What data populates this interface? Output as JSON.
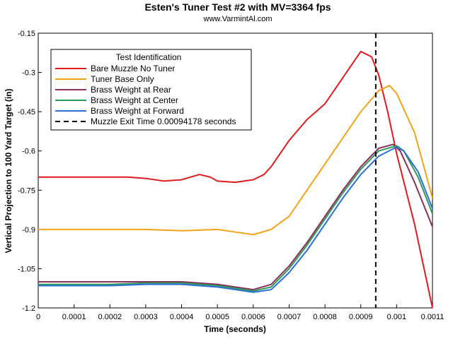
{
  "chart_data": {
    "type": "line",
    "title": "Esten's Tuner Test #2 with MV=3364 fps",
    "subtitle": "www.VarmintAl.com",
    "xlabel": "Time (seconds)",
    "ylabel": "Vertical Projection to 100 Yard Target (in)",
    "xlim": [
      0,
      0.0011
    ],
    "ylim": [
      -1.2,
      -0.15
    ],
    "x_ticks": [
      "0",
      "0.0001",
      "0.0002",
      "0.0003",
      "0.0004",
      "0.0005",
      "0.0006",
      "0.0007",
      "0.0008",
      "0.0009",
      "0.001",
      "0.0011"
    ],
    "y_ticks": [
      "-0.15",
      "-0.3",
      "-0.45",
      "-0.6",
      "-0.75",
      "-0.9",
      "-1.05",
      "-1.2"
    ],
    "grid": false,
    "legend": {
      "title": "Test Identification",
      "position": "top-left"
    },
    "series": [
      {
        "name": "Bare Muzzle No Tuner",
        "color": "#e31a1c",
        "x": [
          0,
          0.0001,
          0.0002,
          0.00025,
          0.0003,
          0.00035,
          0.0004,
          0.00045,
          0.00048,
          0.0005,
          0.00055,
          0.0006,
          0.00063,
          0.00065,
          0.0007,
          0.00075,
          0.0008,
          0.00085,
          0.0009,
          0.00093,
          0.00095,
          0.000975,
          0.001,
          0.00105,
          0.0011
        ],
        "values": [
          -0.7,
          -0.7,
          -0.7,
          -0.7,
          -0.705,
          -0.715,
          -0.71,
          -0.69,
          -0.7,
          -0.715,
          -0.72,
          -0.71,
          -0.69,
          -0.66,
          -0.56,
          -0.48,
          -0.42,
          -0.32,
          -0.22,
          -0.24,
          -0.31,
          -0.45,
          -0.61,
          -0.88,
          -1.2
        ]
      },
      {
        "name": "Tuner Base Only",
        "color": "#f5a21b",
        "x": [
          0,
          0.0001,
          0.0002,
          0.0003,
          0.0004,
          0.0005,
          0.00055,
          0.0006,
          0.00065,
          0.0007,
          0.00075,
          0.0008,
          0.00085,
          0.0009,
          0.00095,
          0.00098,
          0.001,
          0.00105,
          0.0011
        ],
        "values": [
          -0.9,
          -0.9,
          -0.9,
          -0.9,
          -0.905,
          -0.9,
          -0.91,
          -0.92,
          -0.9,
          -0.85,
          -0.75,
          -0.65,
          -0.55,
          -0.45,
          -0.37,
          -0.35,
          -0.38,
          -0.53,
          -0.78
        ]
      },
      {
        "name": "Brass Weight at Rear",
        "color": "#8b2f5a",
        "x": [
          0,
          0.0001,
          0.0002,
          0.0003,
          0.0004,
          0.0005,
          0.00055,
          0.0006,
          0.00065,
          0.0007,
          0.00075,
          0.0008,
          0.00085,
          0.0009,
          0.00095,
          0.00099,
          0.00101,
          0.00105,
          0.0011
        ],
        "values": [
          -1.1,
          -1.1,
          -1.1,
          -1.1,
          -1.1,
          -1.11,
          -1.12,
          -1.13,
          -1.11,
          -1.04,
          -0.95,
          -0.85,
          -0.75,
          -0.66,
          -0.59,
          -0.575,
          -0.6,
          -0.72,
          -0.89
        ]
      },
      {
        "name": "Brass Weight at Center",
        "color": "#2e9a5a",
        "x": [
          0,
          0.0001,
          0.0002,
          0.0003,
          0.0004,
          0.0005,
          0.00055,
          0.0006,
          0.00065,
          0.0007,
          0.00075,
          0.0008,
          0.00085,
          0.0009,
          0.00095,
          0.001,
          0.00102,
          0.00106,
          0.0011
        ],
        "values": [
          -1.11,
          -1.11,
          -1.11,
          -1.105,
          -1.105,
          -1.115,
          -1.125,
          -1.135,
          -1.12,
          -1.05,
          -0.96,
          -0.86,
          -0.76,
          -0.67,
          -0.6,
          -0.58,
          -0.6,
          -0.7,
          -0.84
        ]
      },
      {
        "name": "Brass Weight at Forward",
        "color": "#2b6fd6",
        "x": [
          0,
          0.0001,
          0.0002,
          0.0003,
          0.0004,
          0.0005,
          0.00055,
          0.0006,
          0.00065,
          0.0007,
          0.00075,
          0.0008,
          0.00085,
          0.0009,
          0.00095,
          0.001,
          0.00102,
          0.00106,
          0.0011
        ],
        "values": [
          -1.115,
          -1.115,
          -1.115,
          -1.11,
          -1.11,
          -1.12,
          -1.13,
          -1.14,
          -1.13,
          -1.065,
          -0.98,
          -0.88,
          -0.78,
          -0.69,
          -0.62,
          -0.585,
          -0.6,
          -0.68,
          -0.82
        ]
      }
    ],
    "vertical_line": {
      "name": "Muzzle Exit Time 0.00094178 seconds",
      "x": 0.00094178,
      "color": "#000000",
      "style": "dashed"
    }
  }
}
